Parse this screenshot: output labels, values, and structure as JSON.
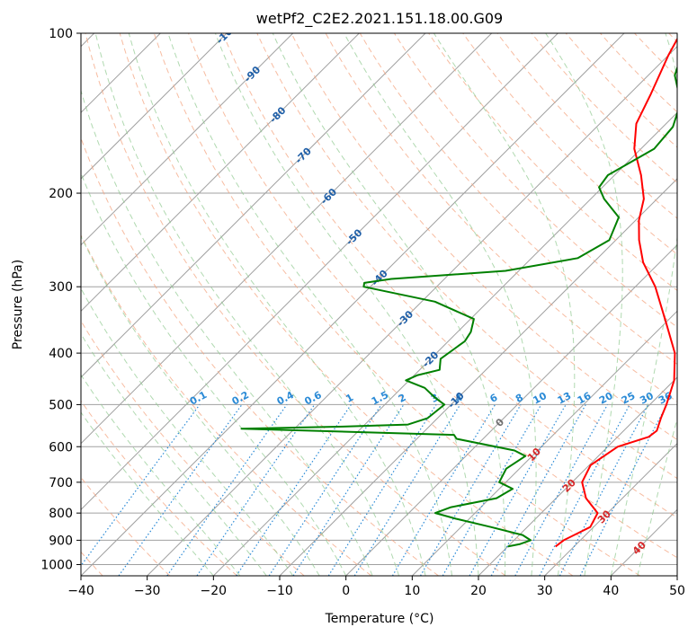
{
  "chart_data": {
    "type": "line",
    "subtype": "skew-t log-p diagram",
    "title": "wetPf2_C2E2.2021.151.18.00.G09",
    "xlabel": "Temperature (°C)",
    "ylabel": "Pressure (hPa)",
    "xlim": [
      -40,
      50
    ],
    "ylim": [
      1050,
      100
    ],
    "y_scale": "log (inverted)",
    "x_ticks": [
      "−40",
      "−30",
      "−20",
      "−10",
      "0",
      "10",
      "20",
      "30",
      "40",
      "50"
    ],
    "y_ticks": [
      "100",
      "200",
      "300",
      "400",
      "500",
      "600",
      "700",
      "800",
      "900",
      "1000"
    ],
    "grid": true,
    "series": [
      {
        "role": "temperature",
        "color": "#ff0000",
        "points": [
          [
            27.2,
            925
          ],
          [
            27.5,
            900
          ],
          [
            29.5,
            850
          ],
          [
            28.5,
            800
          ],
          [
            24.5,
            750
          ],
          [
            21.5,
            700
          ],
          [
            20.2,
            650
          ],
          [
            21.5,
            600
          ],
          [
            24.7,
            575
          ],
          [
            25.0,
            560
          ],
          [
            23.7,
            530
          ],
          [
            22.5,
            500
          ],
          [
            20.0,
            450
          ],
          [
            16.0,
            400
          ],
          [
            10.0,
            350
          ],
          [
            3.0,
            300
          ],
          [
            -2.5,
            270
          ],
          [
            -6.5,
            245
          ],
          [
            -9.5,
            225
          ],
          [
            -12.0,
            205
          ],
          [
            -16.0,
            185
          ],
          [
            -21.0,
            165
          ],
          [
            -24.5,
            148
          ],
          [
            -26.8,
            130
          ],
          [
            -30.0,
            110
          ],
          [
            -31.5,
            100
          ]
        ]
      },
      {
        "role": "dewpoint",
        "color": "#008000",
        "points": [
          [
            20.0,
            925
          ],
          [
            21.5,
            915
          ],
          [
            22.5,
            900
          ],
          [
            20.5,
            880
          ],
          [
            14.5,
            850
          ],
          [
            8.0,
            820
          ],
          [
            4.0,
            800
          ],
          [
            5.5,
            780
          ],
          [
            11.0,
            750
          ],
          [
            12.0,
            720
          ],
          [
            9.0,
            700
          ],
          [
            8.0,
            660
          ],
          [
            9.0,
            625
          ],
          [
            6.5,
            610
          ],
          [
            -4.0,
            580
          ],
          [
            -5.0,
            570
          ],
          [
            -38.0,
            555
          ],
          [
            -23.0,
            550
          ],
          [
            -13.5,
            545
          ],
          [
            -11.5,
            530
          ],
          [
            -11.0,
            500
          ],
          [
            -13.5,
            485
          ],
          [
            -16.5,
            465
          ],
          [
            -20.5,
            450
          ],
          [
            -19.5,
            440
          ],
          [
            -17.0,
            430
          ],
          [
            -18.5,
            410
          ],
          [
            -17.5,
            380
          ],
          [
            -18.0,
            365
          ],
          [
            -19.5,
            345
          ],
          [
            -28.0,
            320
          ],
          [
            -41.0,
            300
          ],
          [
            -41.5,
            295
          ],
          [
            -38.0,
            290
          ],
          [
            -22.0,
            280
          ],
          [
            -13.0,
            265
          ],
          [
            -11.0,
            245
          ],
          [
            -13.0,
            222
          ],
          [
            -18.0,
            205
          ],
          [
            -20.5,
            195
          ],
          [
            -21.0,
            185
          ],
          [
            -18.0,
            165
          ],
          [
            -18.5,
            150
          ],
          [
            -21.0,
            135
          ],
          [
            -26.0,
            120
          ],
          [
            -28.0,
            110
          ],
          [
            -29.5,
            100
          ]
        ]
      }
    ],
    "isotherm_labels": [
      "-100",
      "-90",
      "-80",
      "-70",
      "-60",
      "-50",
      "-40",
      "-30",
      "-20",
      "-10",
      "0",
      "10",
      "20",
      "30",
      "40"
    ],
    "mixing_ratio_labels": [
      "0.1",
      "0.2",
      "0.4",
      "0.6",
      "1",
      "1.5",
      "2",
      "3",
      "4",
      "6",
      "8",
      "10",
      "13",
      "16",
      "20",
      "25",
      "30",
      "36"
    ],
    "colors": {
      "temperature": "#ff0000",
      "dewpoint": "#008000",
      "dry_adiabat": "#f4a582",
      "moist_adiabat": "#8fc98f",
      "mixing_ratio": "#2a8ad6",
      "isotherm_label_blue": "#1f5fa8",
      "isotherm_label_red": "#d62728",
      "grid": "#a0a0a0"
    }
  }
}
